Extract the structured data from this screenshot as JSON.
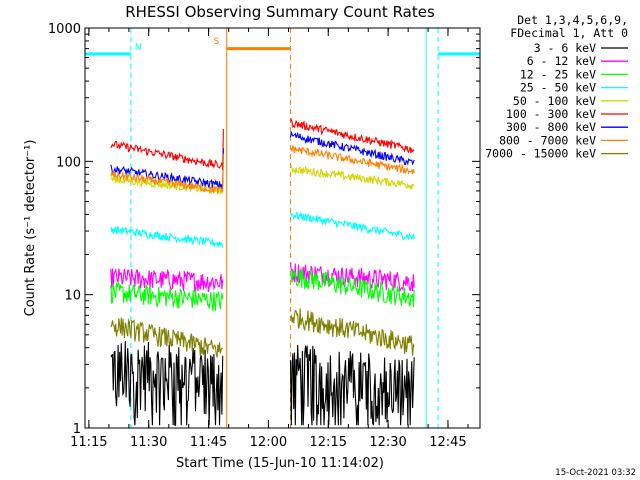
{
  "chart_data": {
    "type": "line",
    "title": "RHESSI Observing Summary Count Rates",
    "xlabel": "Start Time (15-Jun-10 11:14:02)",
    "ylabel": "Count Rate (s⁻¹ detector⁻¹)",
    "yscale": "log",
    "ylim": [
      1,
      1000
    ],
    "x_units": "minutes since 11:14:02",
    "xlim": [
      0,
      99
    ],
    "x_tick_labels": [
      "11:15",
      "11:30",
      "11:45",
      "12:00",
      "12:15",
      "12:30",
      "12:45"
    ],
    "y_tick_labels": [
      "1",
      "10",
      "100",
      "1000"
    ],
    "legend_header": [
      "Det 1,3,4,5,6,9,",
      "FDecimal 1, Att 0"
    ],
    "legend_placement": "right",
    "footer_date": "15-Oct-2021 03:32",
    "flag_labels": {
      "N": "N",
      "S": "S"
    },
    "series": [
      {
        "name": "3 - 6 keV",
        "color": "#000000",
        "seg1": [
          3.0,
          2.6
        ],
        "seg2": [
          2.8,
          2.2
        ]
      },
      {
        "name": "6 - 12 keV",
        "color": "#ff00ff",
        "seg1": [
          13.5,
          12.5
        ],
        "seg2": [
          15.0,
          12.5
        ]
      },
      {
        "name": "12 - 25 keV",
        "color": "#00ff00",
        "seg1": [
          10.5,
          9.0
        ],
        "seg2": [
          14.0,
          9.5
        ]
      },
      {
        "name": "25 - 50 keV",
        "color": "#00ffff",
        "seg1": [
          31,
          24
        ],
        "seg2": [
          40,
          27
        ]
      },
      {
        "name": "50 - 100 keV",
        "color": "#d4d400",
        "seg1": [
          74,
          60
        ],
        "seg2": [
          88,
          66
        ]
      },
      {
        "name": "100 - 300 keV",
        "color": "#ff0000",
        "seg1": [
          135,
          92
        ],
        "seg2": [
          195,
          122
        ]
      },
      {
        "name": "300 - 800 keV",
        "color": "#0000ff",
        "seg1": [
          88,
          66
        ],
        "seg2": [
          158,
          97
        ]
      },
      {
        "name": "800 - 7000 keV",
        "color": "#ff8000",
        "seg1": [
          80,
          60
        ],
        "seg2": [
          125,
          84
        ]
      },
      {
        "name": "7000 - 15000 keV",
        "color": "#808000",
        "seg1": [
          6.0,
          3.8
        ],
        "seg2": [
          7.0,
          4.2
        ]
      }
    ],
    "data_windows_min": [
      [
        6.5,
        34.5
      ],
      [
        51.5,
        82.5
      ]
    ],
    "night_markers": [
      11.5,
      88.5
    ],
    "saa_markers": [
      35.5,
      51.5
    ],
    "night_bars": [
      [
        0,
        11.5
      ],
      [
        88.5,
        99
      ]
    ],
    "saa_bar": [
      35.5,
      51.5
    ]
  }
}
